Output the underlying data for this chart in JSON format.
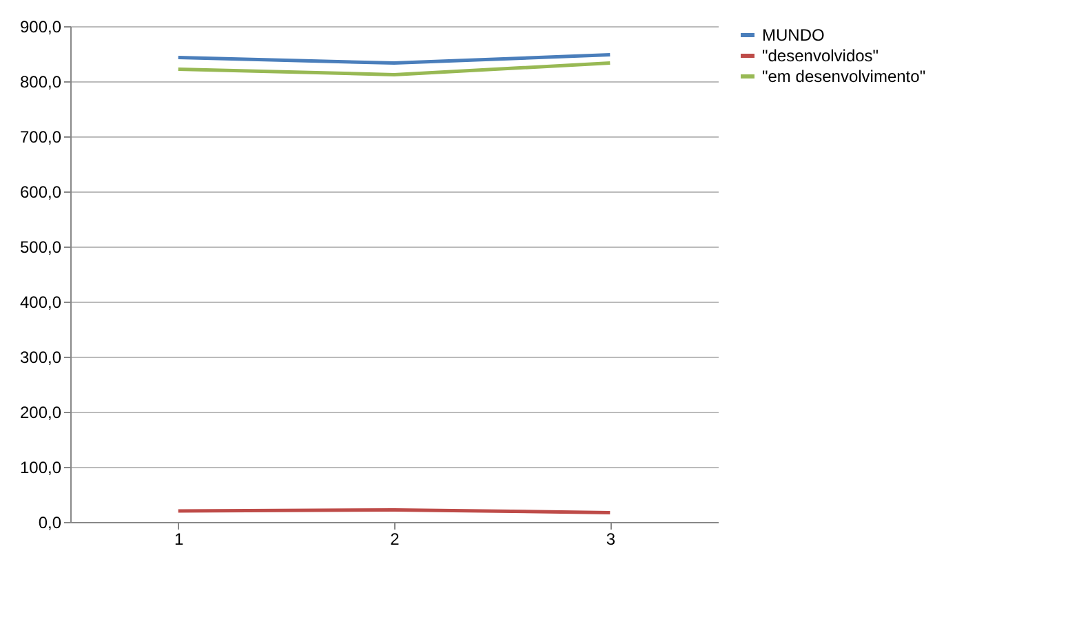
{
  "chart_data": {
    "type": "line",
    "categories": [
      "1",
      "2",
      "3"
    ],
    "series": [
      {
        "name": "MUNDO",
        "color": "#4a7ebb",
        "values": [
          843,
          833,
          848
        ]
      },
      {
        "name": "\"desenvolvidos\"",
        "color": "#be4b48",
        "values": [
          20,
          22,
          17
        ]
      },
      {
        "name": "\"em desenvolvimento\"",
        "color": "#98b954",
        "values": [
          822,
          812,
          833
        ]
      }
    ],
    "ylim": [
      0,
      900
    ],
    "yticks": [
      {
        "value": 0,
        "label": "0,0"
      },
      {
        "value": 100,
        "label": "100,0"
      },
      {
        "value": 200,
        "label": "200,0"
      },
      {
        "value": 300,
        "label": "300,0"
      },
      {
        "value": 400,
        "label": "400,0"
      },
      {
        "value": 500,
        "label": "500,0"
      },
      {
        "value": 600,
        "label": "600,0"
      },
      {
        "value": 700,
        "label": "700,0"
      },
      {
        "value": 800,
        "label": "800,0"
      },
      {
        "value": 900,
        "label": "900,0"
      }
    ],
    "grid": "y",
    "legend": "right",
    "marker": "none",
    "line_style": "solid"
  }
}
